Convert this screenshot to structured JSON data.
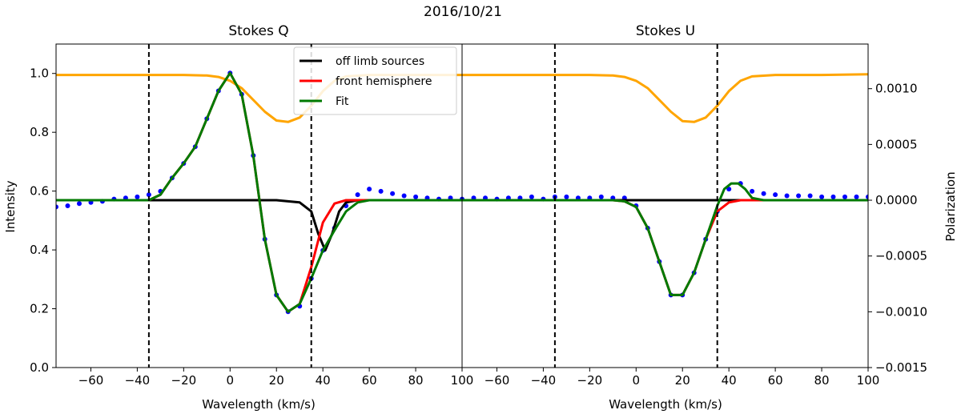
{
  "chart_data": {
    "type": "line",
    "title": "2016/10/21",
    "panels": [
      {
        "title": "Stokes Q",
        "xlabel": "Wavelength (km/s)",
        "xlim": [
          -75,
          100
        ],
        "xticks": [
          -60,
          -40,
          -20,
          0,
          20,
          40,
          60,
          80,
          100
        ],
        "vlines_dashed": [
          -35,
          35
        ],
        "intensity_profile": {
          "name": "Intensity",
          "color": "#ffa500",
          "x": [
            -75,
            -60,
            -45,
            -30,
            -20,
            -10,
            -5,
            0,
            5,
            10,
            15,
            20,
            25,
            30,
            35,
            40,
            45,
            50,
            60,
            80,
            100
          ],
          "y": [
            0.995,
            0.995,
            0.995,
            0.995,
            0.995,
            0.993,
            0.988,
            0.975,
            0.95,
            0.91,
            0.87,
            0.84,
            0.835,
            0.85,
            0.89,
            0.94,
            0.975,
            0.99,
            0.995,
            0.995,
            0.995
          ]
        },
        "observed_points": {
          "name": "observed",
          "color": "#0000ff",
          "x": [
            -75,
            -70,
            -65,
            -60,
            -55,
            -50,
            -45,
            -40,
            -35,
            -30,
            -25,
            -20,
            -15,
            -10,
            -5,
            0,
            5,
            10,
            15,
            20,
            25,
            30,
            35,
            40,
            45,
            50,
            55,
            60,
            65,
            70,
            75,
            80,
            85,
            90,
            95,
            100
          ],
          "y": [
            -6e-05,
            -5e-05,
            -3e-05,
            -2e-05,
            -1e-05,
            1e-05,
            2e-05,
            3e-05,
            5e-05,
            8e-05,
            0.0002,
            0.00033,
            0.00048,
            0.00073,
            0.00098,
            0.00114,
            0.00095,
            0.0004,
            -0.00035,
            -0.00085,
            -0.001,
            -0.00095,
            -0.0007,
            -0.00045,
            -0.00025,
            -5e-05,
            5e-05,
            0.0001,
            8e-05,
            6e-05,
            4e-05,
            3e-05,
            2e-05,
            1e-05,
            2e-05,
            1e-05
          ]
        },
        "off_limb_sources": {
          "name": "off limb sources",
          "color": "#000000",
          "x": [
            -75,
            -20,
            0,
            20,
            30,
            35,
            38,
            41,
            44,
            47,
            50,
            55,
            60,
            100
          ],
          "y": [
            0,
            0,
            0,
            0,
            -2e-05,
            -0.0001,
            -0.0003,
            -0.00045,
            -0.0003,
            -0.0001,
            -2e-05,
            0,
            0,
            0
          ]
        },
        "front_hemisphere": {
          "name": "front hemisphere",
          "color": "#ff0000",
          "x": [
            -75,
            -35,
            -30,
            -25,
            -20,
            -15,
            -10,
            -5,
            0,
            5,
            10,
            15,
            20,
            25,
            30,
            35,
            40,
            45,
            50,
            100
          ],
          "y": [
            0,
            0,
            5e-05,
            0.0002,
            0.00033,
            0.00048,
            0.00073,
            0.00098,
            0.00114,
            0.00095,
            0.0004,
            -0.00035,
            -0.00085,
            -0.001,
            -0.00093,
            -0.0006,
            -0.0002,
            -3e-05,
            0,
            0
          ]
        },
        "fit": {
          "name": "Fit",
          "color": "#007a00",
          "x": [
            -75,
            -35,
            -30,
            -25,
            -20,
            -15,
            -10,
            -5,
            0,
            5,
            10,
            15,
            20,
            25,
            30,
            35,
            40,
            45,
            50,
            55,
            60,
            100
          ],
          "y": [
            0,
            0,
            5e-05,
            0.0002,
            0.00033,
            0.00048,
            0.00073,
            0.00098,
            0.00114,
            0.00095,
            0.0004,
            -0.00035,
            -0.00085,
            -0.001,
            -0.00093,
            -0.0007,
            -0.00045,
            -0.00027,
            -0.0001,
            -2e-05,
            0,
            0
          ]
        }
      },
      {
        "title": "Stokes U",
        "xlabel": "Wavelength (km/s)",
        "xlim": [
          -75,
          100
        ],
        "xticks": [
          -60,
          -40,
          -20,
          0,
          20,
          40,
          60,
          80,
          100
        ],
        "vlines_dashed": [
          -35,
          35
        ],
        "intensity_profile": {
          "name": "Intensity",
          "color": "#ffa500",
          "x": [
            -75,
            -60,
            -40,
            -20,
            -10,
            -5,
            0,
            5,
            10,
            15,
            20,
            25,
            30,
            35,
            40,
            45,
            50,
            60,
            80,
            100
          ],
          "y": [
            0.995,
            0.995,
            0.995,
            0.995,
            0.993,
            0.988,
            0.975,
            0.95,
            0.91,
            0.87,
            0.838,
            0.835,
            0.85,
            0.89,
            0.94,
            0.975,
            0.99,
            0.995,
            0.995,
            0.997
          ]
        },
        "observed_points": {
          "name": "observed",
          "color": "#0000ff",
          "x": [
            -75,
            -70,
            -65,
            -60,
            -55,
            -50,
            -45,
            -40,
            -35,
            -30,
            -25,
            -20,
            -15,
            -10,
            -5,
            0,
            5,
            10,
            15,
            20,
            25,
            30,
            35,
            40,
            45,
            50,
            55,
            60,
            65,
            70,
            75,
            80,
            85,
            90,
            95,
            100
          ],
          "y": [
            1e-05,
            2e-05,
            2e-05,
            1e-05,
            2e-05,
            2e-05,
            3e-05,
            1e-05,
            3e-05,
            3e-05,
            2e-05,
            2e-05,
            3e-05,
            2e-05,
            2e-05,
            -5e-05,
            -0.00025,
            -0.00055,
            -0.00085,
            -0.00085,
            -0.00065,
            -0.00035,
            -0.0001,
            0.0001,
            0.00015,
            8e-05,
            6e-05,
            5e-05,
            4e-05,
            4e-05,
            4e-05,
            3e-05,
            3e-05,
            3e-05,
            3e-05,
            3e-05
          ]
        },
        "off_limb_sources": {
          "name": "off limb sources",
          "color": "#000000",
          "x": [
            -75,
            100
          ],
          "y": [
            0,
            0
          ]
        },
        "front_hemisphere": {
          "name": "front hemisphere",
          "color": "#ff0000",
          "x": [
            -75,
            -10,
            -5,
            0,
            5,
            10,
            15,
            20,
            25,
            30,
            35,
            40,
            45,
            100
          ],
          "y": [
            0,
            0,
            -1e-05,
            -6e-05,
            -0.00025,
            -0.00055,
            -0.00085,
            -0.00085,
            -0.00065,
            -0.00035,
            -0.0001,
            -2e-05,
            0,
            0
          ]
        },
        "fit": {
          "name": "Fit",
          "color": "#007a00",
          "x": [
            -75,
            -10,
            -5,
            0,
            5,
            10,
            15,
            20,
            25,
            30,
            35,
            38,
            41,
            44,
            47,
            50,
            55,
            100
          ],
          "y": [
            0,
            0,
            -1e-05,
            -6e-05,
            -0.00025,
            -0.00055,
            -0.00085,
            -0.00085,
            -0.00065,
            -0.00035,
            -5e-05,
            0.0001,
            0.00015,
            0.00015,
            0.0001,
            2e-05,
            0,
            0
          ]
        }
      }
    ],
    "left_axis": {
      "label": "Intensity",
      "ylim": [
        0.0,
        1.1
      ],
      "ticks": [
        "0.0",
        "0.2",
        "0.4",
        "0.6",
        "0.8",
        "1.0"
      ],
      "tick_values": [
        0.0,
        0.2,
        0.4,
        0.6,
        0.8,
        1.0
      ]
    },
    "right_axis": {
      "label": "Polarization",
      "ylim": [
        -0.0015,
        0.0014
      ],
      "ticks": [
        "−0.0015",
        "−0.0010",
        "−0.0005",
        "0.0000",
        "0.0005",
        "0.0010"
      ],
      "tick_values": [
        -0.0015,
        -0.001,
        -0.0005,
        0.0,
        0.0005,
        0.001
      ]
    },
    "legend": {
      "placement": "upper-center of Stokes Q panel",
      "entries": [
        {
          "label": "off limb sources",
          "color": "#000000"
        },
        {
          "label": "front hemisphere",
          "color": "#ff0000"
        },
        {
          "label": "Fit",
          "color": "#007a00"
        }
      ]
    }
  }
}
